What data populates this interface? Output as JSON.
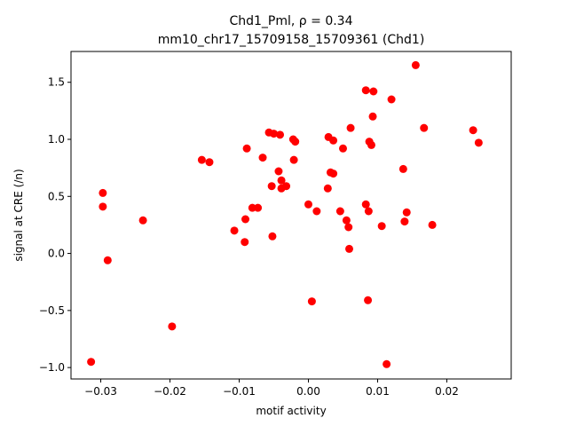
{
  "chart_data": {
    "type": "scatter",
    "title_line1": "Chd1_Pml, ρ = 0.34",
    "title_line2": "mm10_chr17_15709158_15709361 (Chd1)",
    "xlabel": "motif activity",
    "ylabel": "signal at CRE (/n)",
    "xlim": [
      -0.0343,
      0.0293
    ],
    "ylim": [
      -1.1,
      1.77
    ],
    "xticks": [
      -0.03,
      -0.02,
      -0.01,
      0.0,
      0.01,
      0.02
    ],
    "xtick_labels": [
      "−0.03",
      "−0.02",
      "−0.01",
      "0.00",
      "0.01",
      "0.02"
    ],
    "yticks": [
      -1.0,
      -0.5,
      0.0,
      0.5,
      1.0,
      1.5
    ],
    "ytick_labels": [
      "−1.0",
      "−0.5",
      "0.0",
      "0.5",
      "1.0",
      "1.5"
    ],
    "grid": false,
    "marker_color": "#ff0000",
    "points": [
      [
        -0.0314,
        -0.95
      ],
      [
        -0.0297,
        0.53
      ],
      [
        -0.0297,
        0.41
      ],
      [
        -0.029,
        -0.06
      ],
      [
        -0.0239,
        0.29
      ],
      [
        -0.0197,
        -0.64
      ],
      [
        -0.0154,
        0.82
      ],
      [
        -0.0143,
        0.8
      ],
      [
        -0.0107,
        0.2
      ],
      [
        -0.0092,
        0.1
      ],
      [
        -0.0091,
        0.3
      ],
      [
        -0.0089,
        0.92
      ],
      [
        -0.0081,
        0.4
      ],
      [
        -0.0073,
        0.4
      ],
      [
        -0.0066,
        0.84
      ],
      [
        -0.0057,
        1.06
      ],
      [
        -0.0053,
        0.59
      ],
      [
        -0.0052,
        0.15
      ],
      [
        -0.005,
        1.05
      ],
      [
        -0.0043,
        0.72
      ],
      [
        -0.0041,
        1.04
      ],
      [
        -0.0039,
        0.64
      ],
      [
        -0.0039,
        0.57
      ],
      [
        -0.0032,
        0.59
      ],
      [
        -0.0022,
        1.0
      ],
      [
        -0.0021,
        0.82
      ],
      [
        -0.0019,
        0.98
      ],
      [
        0.0,
        0.43
      ],
      [
        0.0005,
        -0.42
      ],
      [
        0.0012,
        0.37
      ],
      [
        0.0028,
        0.57
      ],
      [
        0.0029,
        1.02
      ],
      [
        0.0032,
        0.71
      ],
      [
        0.0036,
        0.99
      ],
      [
        0.0036,
        0.7
      ],
      [
        0.0046,
        0.37
      ],
      [
        0.005,
        0.92
      ],
      [
        0.0055,
        0.29
      ],
      [
        0.0058,
        0.23
      ],
      [
        0.0059,
        0.04
      ],
      [
        0.0061,
        1.1
      ],
      [
        0.0083,
        1.43
      ],
      [
        0.0083,
        0.43
      ],
      [
        0.0086,
        -0.41
      ],
      [
        0.0087,
        0.37
      ],
      [
        0.0088,
        0.98
      ],
      [
        0.0091,
        0.95
      ],
      [
        0.0093,
        1.2
      ],
      [
        0.0094,
        1.42
      ],
      [
        0.0106,
        0.24
      ],
      [
        0.0113,
        -0.97
      ],
      [
        0.012,
        1.35
      ],
      [
        0.0137,
        0.74
      ],
      [
        0.0139,
        0.28
      ],
      [
        0.0142,
        0.36
      ],
      [
        0.0155,
        1.65
      ],
      [
        0.0167,
        1.1
      ],
      [
        0.0179,
        0.25
      ],
      [
        0.0238,
        1.08
      ],
      [
        0.0246,
        0.97
      ]
    ]
  }
}
